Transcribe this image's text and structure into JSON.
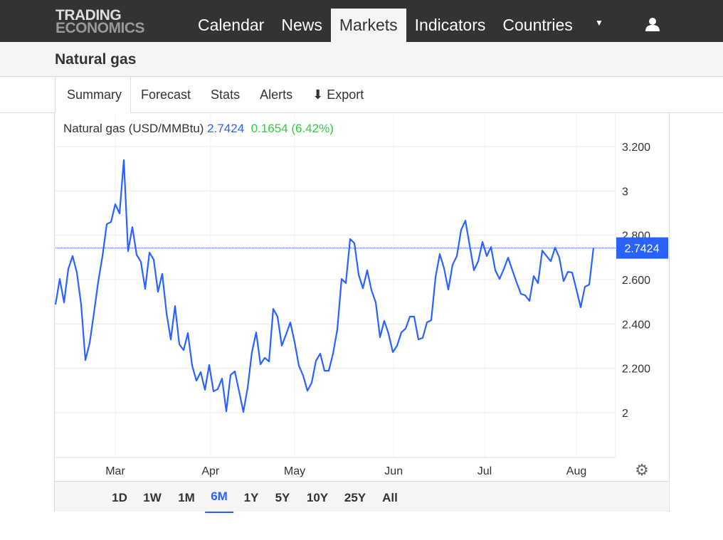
{
  "logo": {
    "line1": "TRADING",
    "line2": "ECONOMICS"
  },
  "nav": [
    "Calendar",
    "News",
    "Markets",
    "Indicators",
    "Countries"
  ],
  "page_title": "Natural gas",
  "tabs": [
    "Summary",
    "Forecast",
    "Stats",
    "Alerts",
    "Export"
  ],
  "legend": {
    "name": "Natural gas (USD/MMBtu)",
    "price": "2.7424",
    "change": "0.1654 (6.42%)"
  },
  "ranges": [
    "1D",
    "1W",
    "1M",
    "6M",
    "1Y",
    "5Y",
    "10Y",
    "25Y",
    "All"
  ],
  "active_range": "6M",
  "colors": {
    "line": "#2962ff",
    "up": "#2ecc40"
  },
  "chart_data": {
    "type": "line",
    "series_name": "Natural gas (USD/MMBtu)",
    "last_label": "2.7424",
    "ylim": [
      1.8,
      3.3
    ],
    "yticks": [
      {
        "v": 2,
        "l": "2"
      },
      {
        "v": 2.2,
        "l": "2.200"
      },
      {
        "v": 2.4,
        "l": "2.400"
      },
      {
        "v": 2.6,
        "l": "2.600"
      },
      {
        "v": 2.8,
        "l": "2.800"
      },
      {
        "v": 3,
        "l": "3"
      },
      {
        "v": 3.2,
        "l": "3.200"
      }
    ],
    "xticks": [
      {
        "i": 14,
        "l": "Mar"
      },
      {
        "i": 36.3,
        "l": "Apr"
      },
      {
        "i": 56,
        "l": "May"
      },
      {
        "i": 79.2,
        "l": "Jun"
      },
      {
        "i": 100.5,
        "l": "Jul"
      },
      {
        "i": 122,
        "l": "Aug"
      }
    ],
    "values": [
      2.488,
      2.603,
      2.497,
      2.648,
      2.706,
      2.632,
      2.488,
      2.237,
      2.314,
      2.449,
      2.59,
      2.706,
      2.85,
      2.86,
      2.94,
      2.898,
      3.139,
      2.728,
      2.837,
      2.712,
      2.68,
      2.558,
      2.722,
      2.69,
      2.545,
      2.626,
      2.449,
      2.33,
      2.481,
      2.308,
      2.282,
      2.359,
      2.212,
      2.144,
      2.183,
      2.103,
      2.215,
      2.096,
      2.106,
      2.154,
      2.006,
      2.17,
      2.186,
      2.096,
      2.003,
      2.112,
      2.273,
      2.362,
      2.218,
      2.247,
      2.231,
      2.468,
      2.433,
      2.302,
      2.353,
      2.407,
      2.318,
      2.212,
      2.167,
      2.099,
      2.135,
      2.234,
      2.266,
      2.189,
      2.189,
      2.266,
      2.375,
      2.603,
      2.584,
      2.783,
      2.764,
      2.622,
      2.561,
      2.642,
      2.552,
      2.497,
      2.34,
      2.414,
      2.356,
      2.273,
      2.302,
      2.362,
      2.379,
      2.433,
      2.433,
      2.33,
      2.337,
      2.407,
      2.417,
      2.61,
      2.715,
      2.651,
      2.555,
      2.667,
      2.706,
      2.824,
      2.866,
      2.754,
      2.642,
      2.683,
      2.77,
      2.706,
      2.747,
      2.642,
      2.603,
      2.648,
      2.699,
      2.642,
      2.587,
      2.536,
      2.529,
      2.504,
      2.616,
      2.584,
      2.731,
      2.706,
      2.683,
      2.744,
      2.699,
      2.593,
      2.635,
      2.632,
      2.555,
      2.475,
      2.568,
      2.577,
      2.7424
    ]
  }
}
